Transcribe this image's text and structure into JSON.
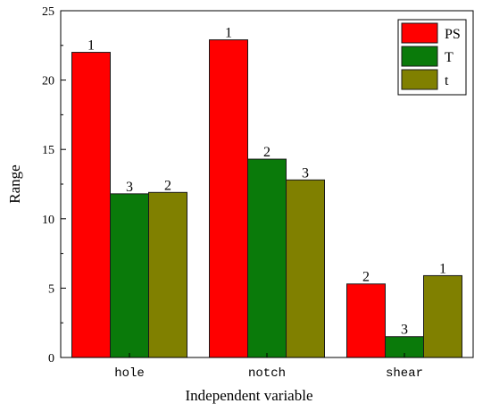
{
  "chart_data": {
    "type": "bar",
    "title": "",
    "xlabel": "Independent variable",
    "ylabel": "Range",
    "categories": [
      "hole",
      "notch",
      "shear"
    ],
    "ylim": [
      0,
      25
    ],
    "yticks": [
      0,
      5,
      10,
      15,
      20,
      25
    ],
    "grid": false,
    "legend_position": "top-right",
    "series": [
      {
        "name": "PS",
        "color": "#ff0000",
        "values": [
          22.0,
          22.9,
          5.3
        ],
        "labels": [
          "1",
          "1",
          "2"
        ]
      },
      {
        "name": "T",
        "color": "#0a7a0a",
        "values": [
          11.8,
          14.3,
          1.5
        ],
        "labels": [
          "3",
          "2",
          "3"
        ]
      },
      {
        "name": "t",
        "color": "#808000",
        "values": [
          11.9,
          12.8,
          5.9
        ],
        "labels": [
          "2",
          "3",
          "1"
        ]
      }
    ]
  }
}
